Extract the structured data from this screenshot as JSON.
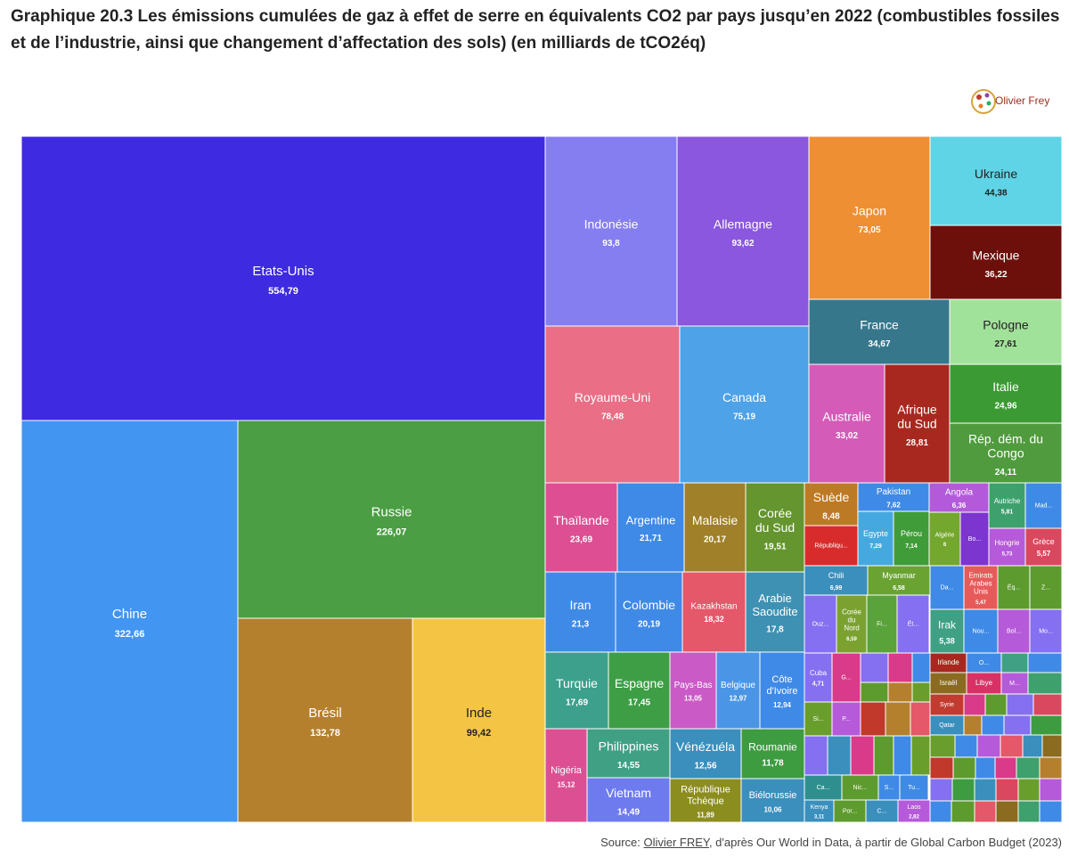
{
  "title": "Graphique 20.3 Les émissions cumulées de gaz à effet de serre en équivalents CO2 par pays jusqu’en 2022 (combustibles fossiles et de l’industrie, ainsi que changement d’affectation des sols) (en milliards de tCO2éq)",
  "logo_text": "Olivier Frey",
  "source": {
    "prefix": "Source: ",
    "author": "Olivier FREY",
    "rest": ", d'après Our World in Data, à partir de Global Carbon Budget (2023)"
  },
  "chart_data": {
    "type": "treemap",
    "unit": "milliards de tCO2éq",
    "items": [
      {
        "label": "Etats-Unis",
        "value": "554,79",
        "color": "#3e2ae0"
      },
      {
        "label": "Chine",
        "value": "322,66",
        "color": "#4295f0"
      },
      {
        "label": "Russie",
        "value": "226,07",
        "color": "#4b9e43"
      },
      {
        "label": "Brésil",
        "value": "132,78",
        "color": "#b5802e"
      },
      {
        "label": "Inde",
        "value": "99,42",
        "color": "#f4c545"
      },
      {
        "label": "Indonésie",
        "value": "93,8",
        "color": "#857ef0"
      },
      {
        "label": "Allemagne",
        "value": "93,62",
        "color": "#8a57de"
      },
      {
        "label": "Japon",
        "value": "73,05",
        "color": "#ee8f34"
      },
      {
        "label": "Ukraine",
        "value": "44,38",
        "color": "#5fd4e6"
      },
      {
        "label": "Mexique",
        "value": "36,22",
        "color": "#6d0f0b"
      },
      {
        "label": "Royaume-Uni",
        "value": "78,48",
        "color": "#ea6e86"
      },
      {
        "label": "Canada",
        "value": "75,19",
        "color": "#4da2e8"
      },
      {
        "label": "France",
        "value": "34,67",
        "color": "#36778c"
      },
      {
        "label": "Pologne",
        "value": "27,61",
        "color": "#a1e29a"
      },
      {
        "label": "Australie",
        "value": "33,02",
        "color": "#d45bb8"
      },
      {
        "label": "Afrique du Sud",
        "value": "28,81",
        "color": "#a82820"
      },
      {
        "label": "Italie",
        "value": "24,96",
        "color": "#3b9a34"
      },
      {
        "label": "Rép. dém. du Congo",
        "value": "24,11",
        "color": "#4f9b3d"
      },
      {
        "label": "Thaïlande",
        "value": "23,69",
        "color": "#de4e92"
      },
      {
        "label": "Argentine",
        "value": "21,71",
        "color": "#3f8ae6"
      },
      {
        "label": "Malaisie",
        "value": "20,17",
        "color": "#a08028"
      },
      {
        "label": "Corée du Sud",
        "value": "19,51",
        "color": "#64952e"
      },
      {
        "label": "Iran",
        "value": "21,3",
        "color": "#3f8ae6"
      },
      {
        "label": "Colombie",
        "value": "20,19",
        "color": "#3f8ae6"
      },
      {
        "label": "Kazakhstan",
        "value": "18,32",
        "color": "#e45869"
      },
      {
        "label": "Arabie Saoudite",
        "value": "17,8",
        "color": "#3e91b2"
      },
      {
        "label": "Turquie",
        "value": "17,69",
        "color": "#3ca08c"
      },
      {
        "label": "Espagne",
        "value": "17,45",
        "color": "#3d9e46"
      },
      {
        "label": "Nigéria",
        "value": "15,12",
        "color": "#dd4f93"
      },
      {
        "label": "Philippines",
        "value": "14,55",
        "color": "#3fa084"
      },
      {
        "label": "Vietnam",
        "value": "14,49",
        "color": "#6e7bef"
      },
      {
        "label": "Pays-Bas",
        "value": "13,05",
        "color": "#ca5ac5"
      },
      {
        "label": "Belgique",
        "value": "12,97",
        "color": "#4a95e6"
      },
      {
        "label": "Côte d'Ivoire",
        "value": "12,94",
        "color": "#3f8ae6"
      },
      {
        "label": "Vénézuéla",
        "value": "12,56",
        "color": "#3a8fbd"
      },
      {
        "label": "Roumanie",
        "value": "11,78",
        "color": "#3d9b40"
      },
      {
        "label": "République Tchèque",
        "value": "11,89",
        "color": "#8c8d1f"
      },
      {
        "label": "Biélorussie",
        "value": "10,06",
        "color": "#3a8fbd"
      },
      {
        "label": "Suède",
        "value": "8,48",
        "color": "#bd7a25"
      },
      {
        "label": "Républiqu...",
        "value": "",
        "color": "#d82c2c"
      },
      {
        "label": "Pakistan",
        "value": "7,62",
        "color": "#3f8ae6"
      },
      {
        "label": "Egypte",
        "value": "7,29",
        "color": "#45a9df"
      },
      {
        "label": "Pérou",
        "value": "7,14",
        "color": "#3f9c38"
      },
      {
        "label": "Angola",
        "value": "6,36",
        "color": "#b25ad9"
      },
      {
        "label": "Algérie",
        "value": "6",
        "color": "#74a72d"
      },
      {
        "label": "Bo...",
        "value": "",
        "color": "#7c35cf"
      },
      {
        "label": "Autriche",
        "value": "5,81",
        "color": "#3ea06d"
      },
      {
        "label": "Mad...",
        "value": "",
        "color": "#3f8ae6"
      },
      {
        "label": "Hongrie",
        "value": "5,73",
        "color": "#b55ad9"
      },
      {
        "label": "Grèce",
        "value": "5,57",
        "color": "#d9485e"
      },
      {
        "label": "Chili",
        "value": "6,99",
        "color": "#3a8fbd"
      },
      {
        "label": "Myanmar",
        "value": "6,58",
        "color": "#6aa332"
      },
      {
        "label": "Ouz...",
        "value": "",
        "color": "#8470f0"
      },
      {
        "label": "Corée du Nord",
        "value": "6,59",
        "color": "#7ba231"
      },
      {
        "label": "Fi...",
        "value": "",
        "color": "#5aa23a"
      },
      {
        "label": "Ét...",
        "value": "",
        "color": "#8470f0"
      },
      {
        "label": "Da...",
        "value": "",
        "color": "#3f8ae6"
      },
      {
        "label": "Emirats Arabes Unis",
        "value": "5,47",
        "color": "#e85a5a"
      },
      {
        "label": "Éq...",
        "value": "",
        "color": "#5e9b2e"
      },
      {
        "label": "Z...",
        "value": "",
        "color": "#5e9b2e"
      },
      {
        "label": "Irak",
        "value": "5,38",
        "color": "#3fa084"
      },
      {
        "label": "Nou...",
        "value": "",
        "color": "#3f8ae6"
      },
      {
        "label": "Bol...",
        "value": "",
        "color": "#b55ad9"
      },
      {
        "label": "Mo...",
        "value": "",
        "color": "#8470f0"
      },
      {
        "label": "Cuba",
        "value": "4,71",
        "color": "#8470f0"
      },
      {
        "label": "G...",
        "value": "",
        "color": "#d93a8a"
      },
      {
        "label": "Si...",
        "value": "",
        "color": "#6a9e2c"
      },
      {
        "label": "P...",
        "value": "",
        "color": "#b55ad9"
      },
      {
        "label": "Irlande",
        "value": "",
        "color": "#a8281f"
      },
      {
        "label": "O...",
        "value": "",
        "color": "#3f8ae6"
      },
      {
        "label": "Israël",
        "value": "",
        "color": "#8a6b1f"
      },
      {
        "label": "Libye",
        "value": "",
        "color": "#d93066"
      },
      {
        "label": "M...",
        "value": "",
        "color": "#b55ad9"
      },
      {
        "label": "Syrie",
        "value": "",
        "color": "#c23b2f"
      },
      {
        "label": "Qatar",
        "value": "",
        "color": "#3a8fbd"
      },
      {
        "label": "Ca...",
        "value": "",
        "color": "#2f8f8f"
      },
      {
        "label": "Nic...",
        "value": "",
        "color": "#5e9b2e"
      },
      {
        "label": "S...",
        "value": "",
        "color": "#3f8ae6"
      },
      {
        "label": "Tu...",
        "value": "",
        "color": "#3f8ae6"
      },
      {
        "label": "Kenya",
        "value": "3,11",
        "color": "#3a8fbd"
      },
      {
        "label": "Por...",
        "value": "",
        "color": "#5e9b2e"
      },
      {
        "label": "C...",
        "value": "",
        "color": "#3a8fbd"
      },
      {
        "label": "Laos",
        "value": "2,82",
        "color": "#b55ad9"
      }
    ]
  }
}
